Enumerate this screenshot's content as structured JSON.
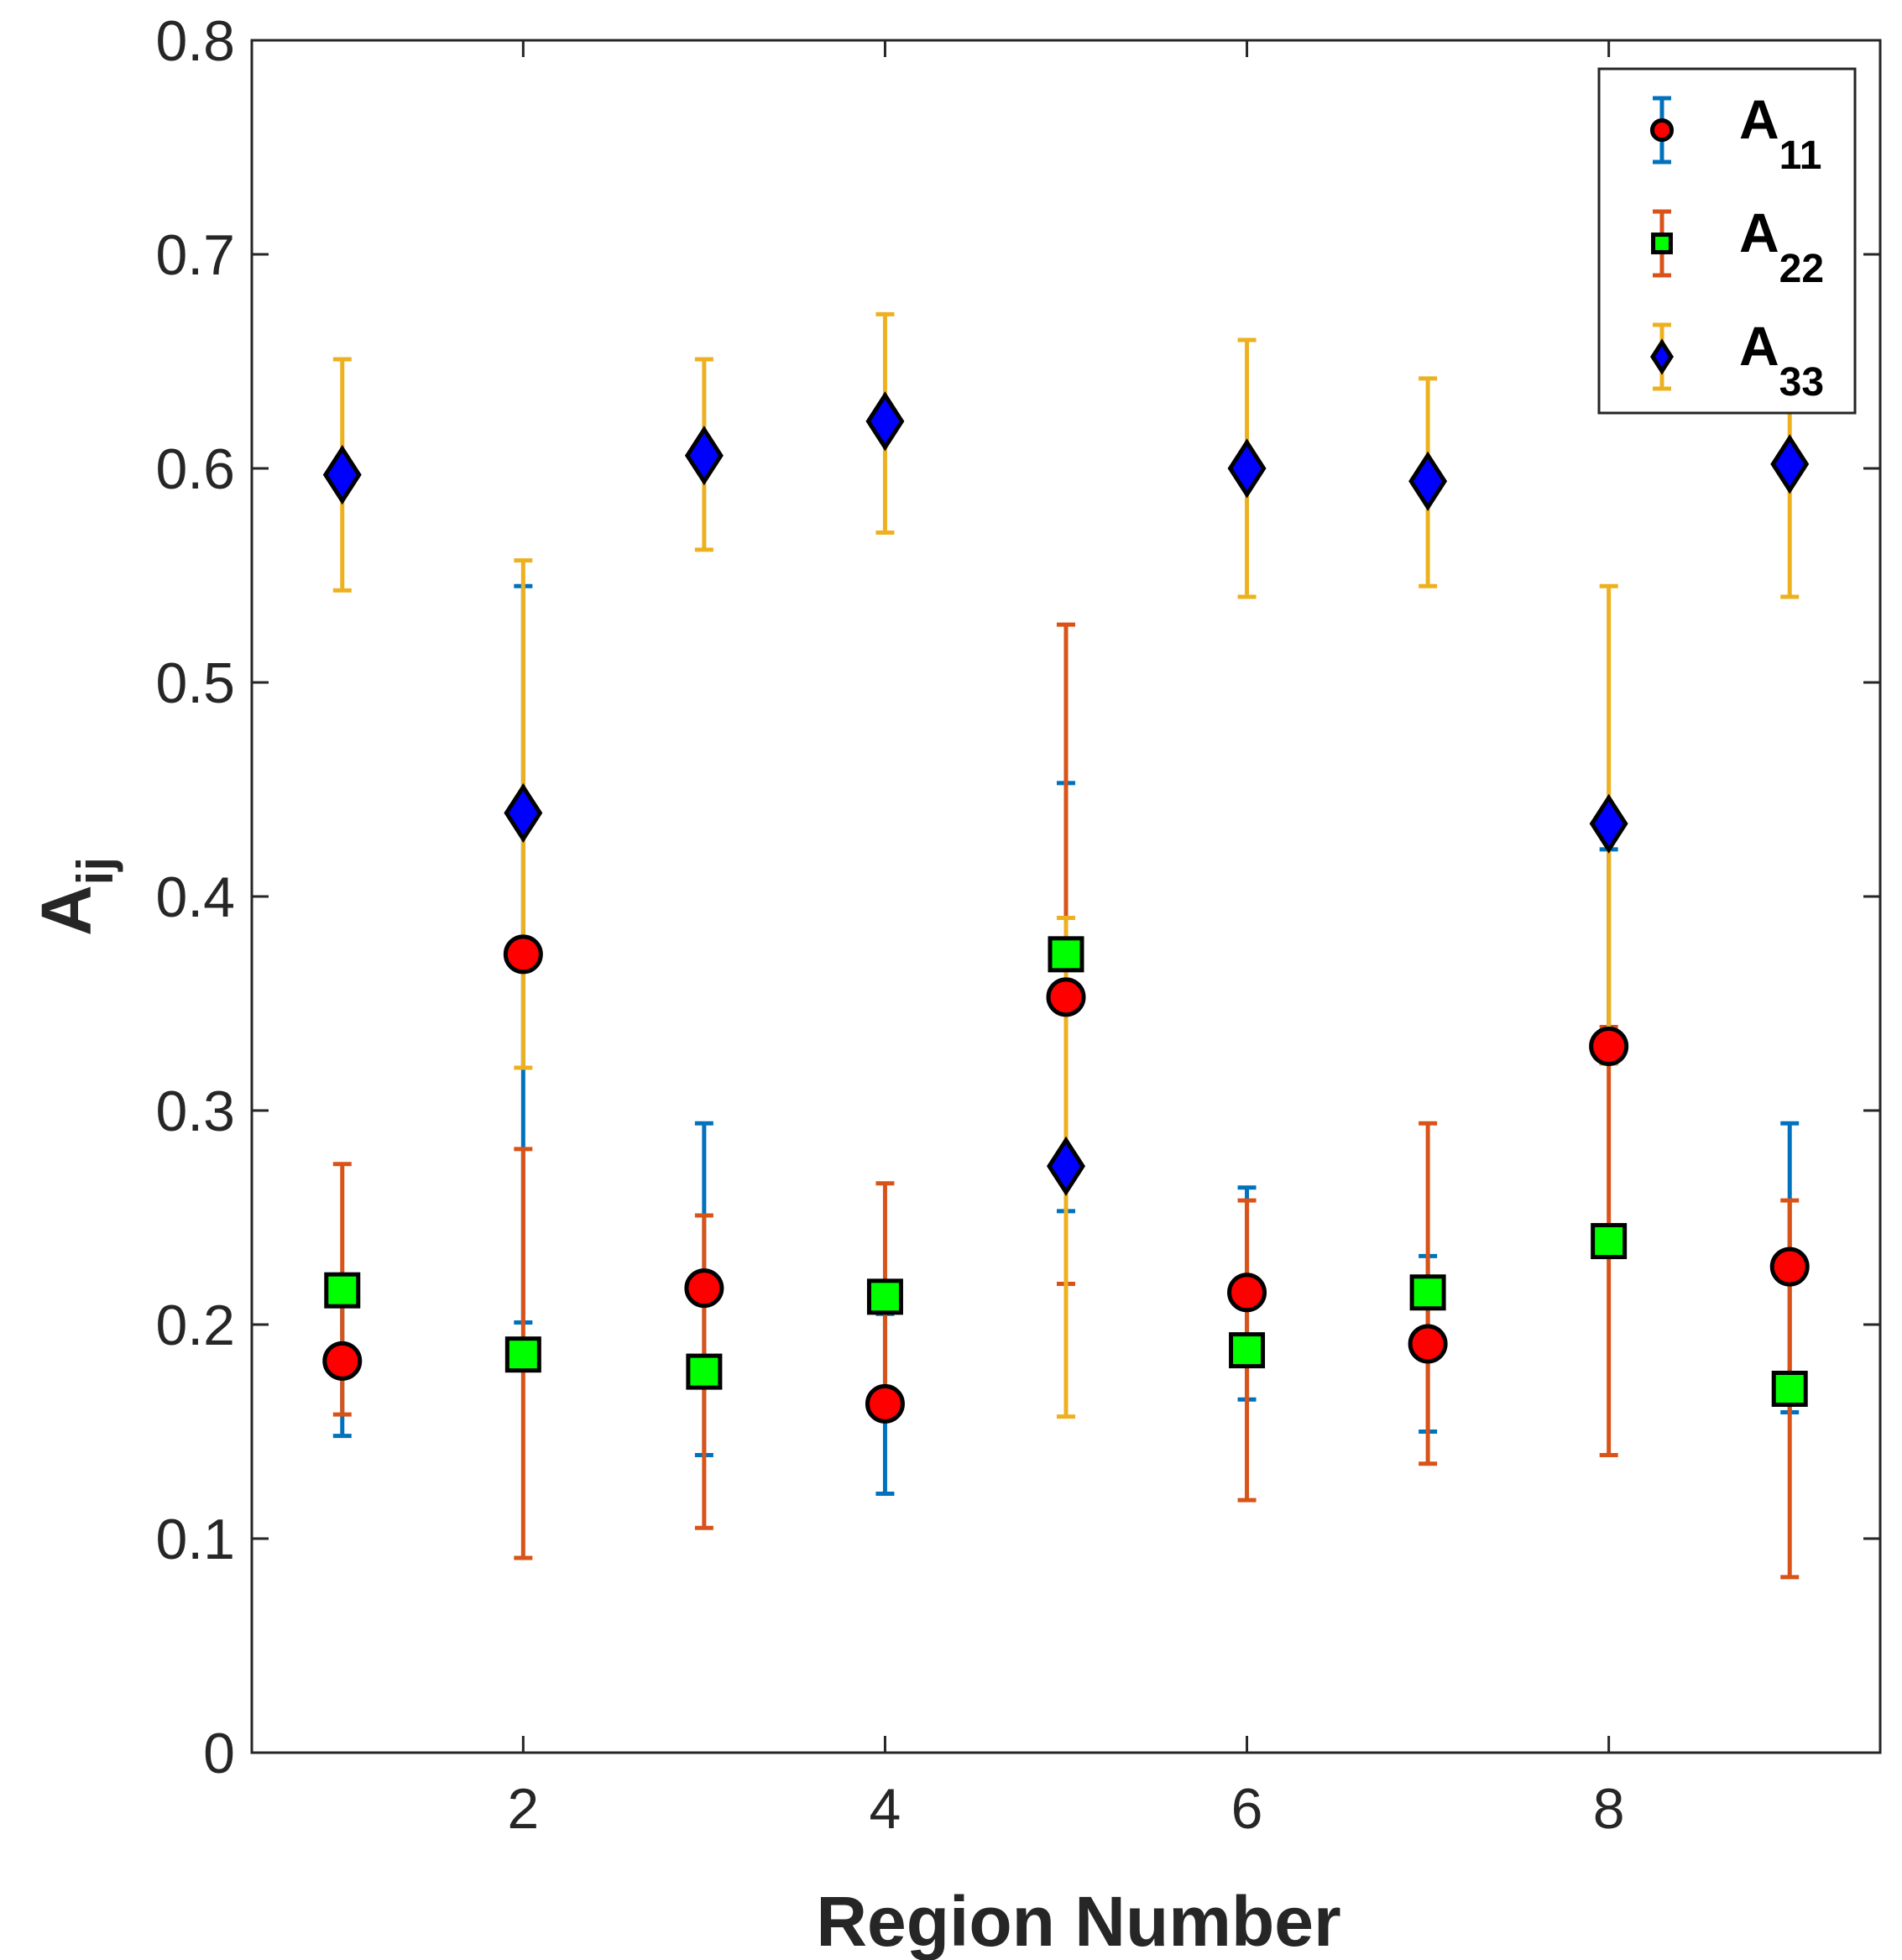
{
  "chart_data": {
    "type": "scatter",
    "subtype": "errorbar",
    "xlabel": "Region Number",
    "ylabel": {
      "base": "A",
      "sub": "ij"
    },
    "xlim": [
      0.5,
      9.5
    ],
    "ylim": [
      0,
      0.8
    ],
    "xticks": [
      2,
      4,
      6,
      8
    ],
    "yticks": [
      0,
      0.1,
      0.2,
      0.3,
      0.4,
      0.5,
      0.6,
      0.7,
      0.8
    ],
    "xtick_labels": [
      "2",
      "4",
      "6",
      "8"
    ],
    "ytick_labels": [
      "0",
      "0.1",
      "0.2",
      "0.3",
      "0.4",
      "0.5",
      "0.6",
      "0.7",
      "0.8"
    ],
    "grid": false,
    "legend_position": "top-right",
    "x": [
      1,
      2,
      3,
      4,
      5,
      6,
      7,
      8,
      9
    ],
    "series": [
      {
        "name": "A11",
        "legend_base": "A",
        "legend_sub": "11",
        "marker": "circle",
        "marker_color": "#ff0000",
        "errorbar_color": "#0072bd",
        "values": [
          0.183,
          0.373,
          0.217,
          0.163,
          0.353,
          0.215,
          0.191,
          0.33,
          0.227
        ],
        "lower": [
          0.148,
          0.201,
          0.139,
          0.121,
          0.253,
          0.165,
          0.15,
          0.322,
          0.159
        ],
        "upper": [
          0.218,
          0.545,
          0.294,
          0.205,
          0.453,
          0.264,
          0.232,
          0.422,
          0.294
        ]
      },
      {
        "name": "A22",
        "legend_base": "A",
        "legend_sub": "22",
        "marker": "square",
        "marker_color": "#00ff00",
        "errorbar_color": "#d95319",
        "values": [
          0.216,
          0.186,
          0.178,
          0.213,
          0.373,
          0.188,
          0.215,
          0.239,
          0.17
        ],
        "lower": [
          0.158,
          0.091,
          0.105,
          0.162,
          0.219,
          0.118,
          0.135,
          0.139,
          0.082
        ],
        "upper": [
          0.275,
          0.282,
          0.251,
          0.266,
          0.527,
          0.258,
          0.294,
          0.339,
          0.258
        ]
      },
      {
        "name": "A33",
        "legend_base": "A",
        "legend_sub": "33",
        "marker": "diamond",
        "marker_color": "#0000ff",
        "errorbar_color": "#edb120",
        "values": [
          0.597,
          0.439,
          0.606,
          0.622,
          0.274,
          0.6,
          0.594,
          0.434,
          0.602
        ],
        "lower": [
          0.543,
          0.32,
          0.562,
          0.57,
          0.157,
          0.54,
          0.545,
          0.322,
          0.54
        ],
        "upper": [
          0.651,
          0.557,
          0.651,
          0.672,
          0.39,
          0.66,
          0.642,
          0.545,
          0.664
        ]
      }
    ]
  }
}
